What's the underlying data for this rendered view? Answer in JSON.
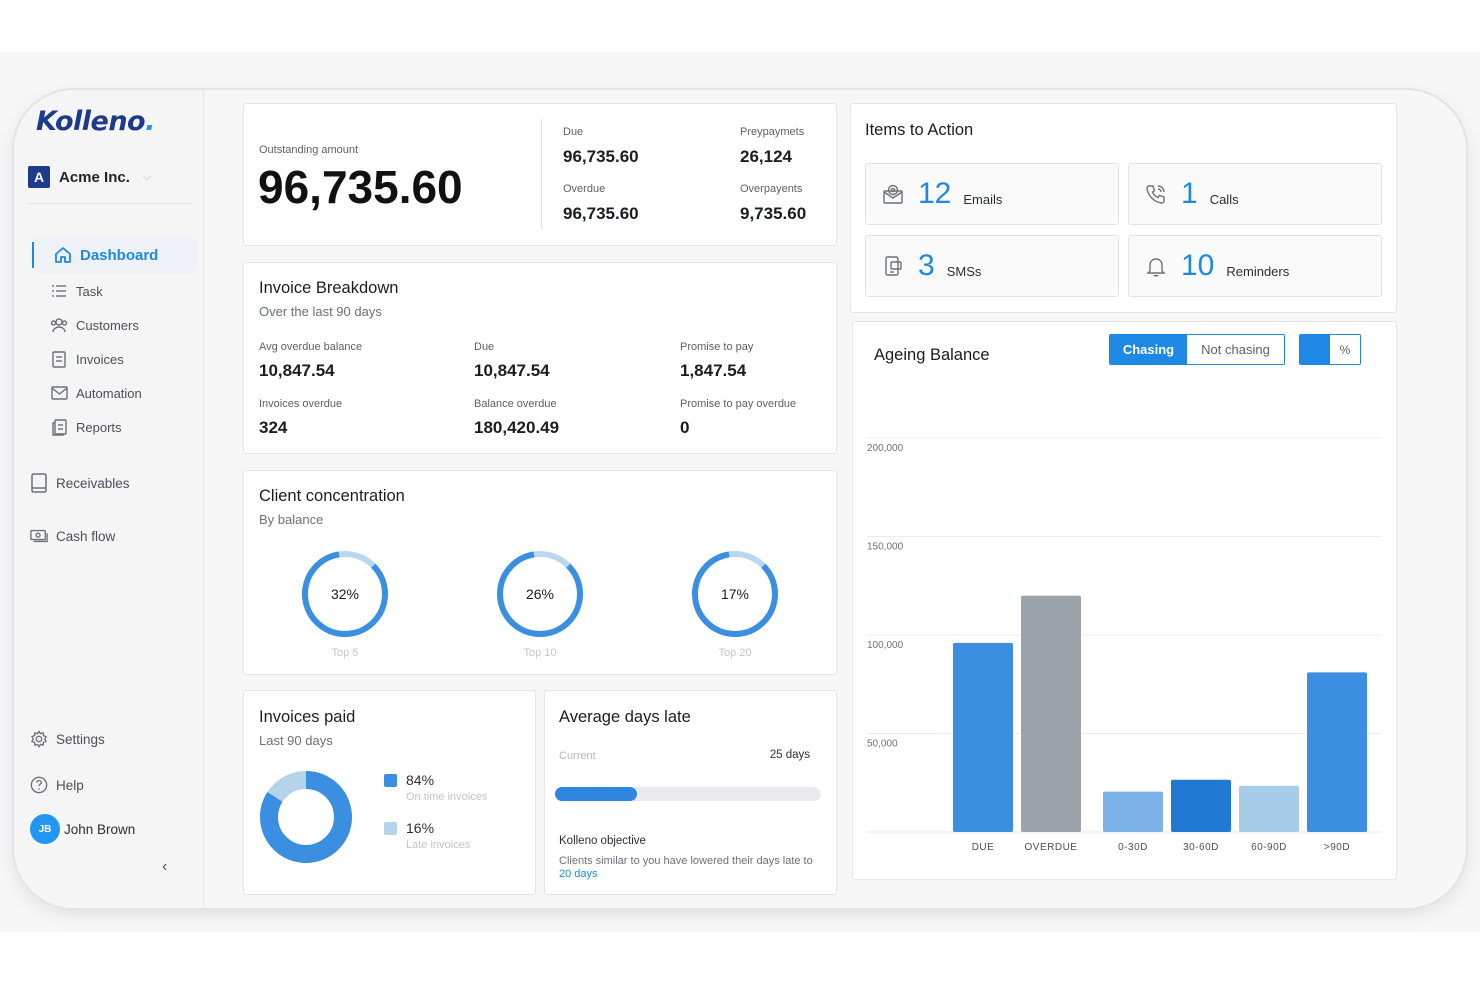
{
  "brand": {
    "name": "Kolleno",
    "dot": "."
  },
  "company": {
    "initial": "A",
    "name": "Acme Inc."
  },
  "nav": {
    "dashboard": "Dashboard",
    "task": "Task",
    "customers": "Customers",
    "invoices": "Invoices",
    "automation": "Automation",
    "reports": "Reports",
    "receivables": "Receivables",
    "cash_flow": "Cash flow",
    "settings": "Settings",
    "help": "Help"
  },
  "user": {
    "initials": "JB",
    "name": "John Brown"
  },
  "outstanding": {
    "label": "Outstanding amount",
    "value": "96,735.60",
    "due_label": "Due",
    "due_value": "96,735.60",
    "prepay_label": "Preypaymets",
    "prepay_value": "26,124",
    "overdue_label": "Overdue",
    "overdue_value": "96,735.60",
    "overpay_label": "Overpayents",
    "overpay_value": "9,735.60"
  },
  "breakdown": {
    "title": "Invoice Breakdown",
    "subtitle": "Over the last 90 days",
    "stats": [
      {
        "label": "Avg overdue balance",
        "value": "10,847.54"
      },
      {
        "label": "Due",
        "value": "10,847.54"
      },
      {
        "label": "Promise to pay",
        "value": "1,847.54"
      },
      {
        "label": "Invoices overdue",
        "value": "324"
      },
      {
        "label": "Balance overdue",
        "value": "180,420.49"
      },
      {
        "label": "Promise to pay overdue",
        "value": "0"
      }
    ]
  },
  "concentration": {
    "title": "Client concentration",
    "subtitle": "By balance",
    "rings": [
      {
        "pct_label": "32%",
        "caption": "Top 5",
        "fraction": 0.85
      },
      {
        "pct_label": "26%",
        "caption": "Top 10",
        "fraction": 0.85
      },
      {
        "pct_label": "17%",
        "caption": "Top 20",
        "fraction": 0.85
      }
    ]
  },
  "invoices_paid": {
    "title": "Invoices paid",
    "subtitle": "Last 90 days",
    "on_time_pct": "84%",
    "on_time_label": "On time invoices",
    "on_time_fraction": 0.84,
    "late_pct": "16%",
    "late_label": "Late invoices",
    "colors": {
      "on_time": "#3b8fe0",
      "late": "#b5d3ea"
    }
  },
  "days_late": {
    "title": "Average days late",
    "current_label": "Current",
    "current_value": "25 days",
    "progress_fraction": 0.31,
    "objective_title": "Kolleno objective",
    "objective_text": "Clients similar to you have lowered their days late to",
    "objective_link": "20 days"
  },
  "actions": {
    "title": "Items to Action",
    "items": [
      {
        "icon": "email-icon",
        "count": "12",
        "label": "Emails"
      },
      {
        "icon": "phone-icon",
        "count": "1",
        "label": "Calls"
      },
      {
        "icon": "sms-icon",
        "count": "3",
        "label": "SMSs"
      },
      {
        "icon": "bell-icon",
        "count": "10",
        "label": "Reminders"
      }
    ]
  },
  "ageing": {
    "title": "Ageing Balance",
    "toggle_chasing": "Chasing",
    "toggle_not_chasing": "Not chasing",
    "toggle_percent": "%"
  },
  "chart_data": {
    "type": "bar",
    "categories": [
      "DUE",
      "OVERDUE",
      "0-30D",
      "30-60D",
      "60-90D",
      ">90D"
    ],
    "values": [
      96000,
      120000,
      20500,
      26500,
      23500,
      81000
    ],
    "colors": [
      "#3b8ee0",
      "#9ca3ab",
      "#7db2e8",
      "#1f78d1",
      "#a9cde9",
      "#3b8ee0"
    ],
    "ylim": [
      0,
      200000
    ],
    "yticks": [
      "50,000",
      "100,000",
      "150,000",
      "200,000"
    ],
    "ytick_values": [
      50000,
      100000,
      150000,
      200000
    ],
    "grid": true
  }
}
